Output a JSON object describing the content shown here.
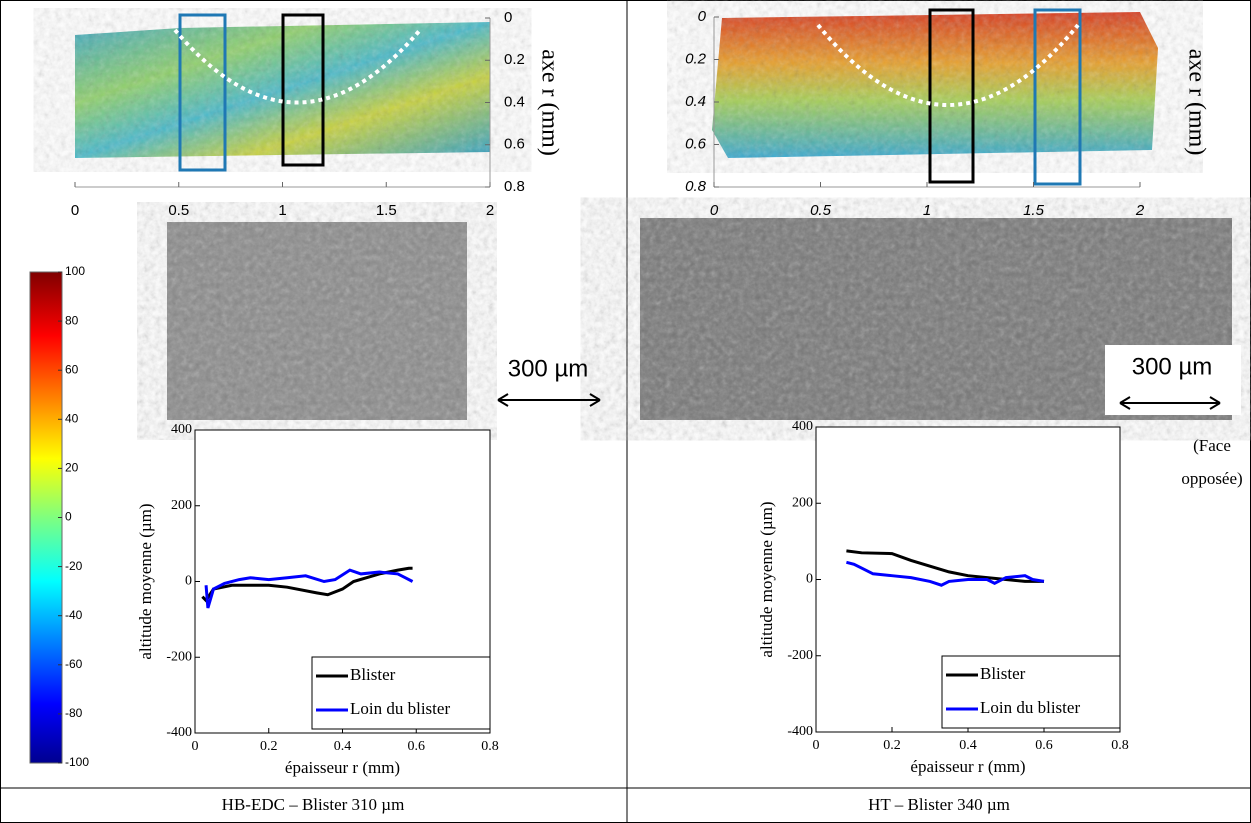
{
  "chart_data": [
    {
      "type": "line",
      "xlabel": "épaisseur r (mm)",
      "ylabel": "altitude moyenne (µm)",
      "xlim": [
        0,
        0.8
      ],
      "xticks": [
        0,
        0.2,
        0.4,
        0.6,
        0.8
      ],
      "ylim": [
        -400,
        400
      ],
      "yticks": [
        -400,
        -200,
        0,
        200,
        400
      ],
      "legend": "lower right",
      "series": [
        {
          "name": "Blister",
          "color": "#000000",
          "x": [
            0.02,
            0.03,
            0.05,
            0.1,
            0.2,
            0.25,
            0.33,
            0.36,
            0.4,
            0.43,
            0.5,
            0.55,
            0.58,
            0.59
          ],
          "values": [
            -40,
            -50,
            -20,
            -10,
            -10,
            -15,
            -30,
            -35,
            -20,
            0,
            20,
            30,
            35,
            35
          ]
        },
        {
          "name": "Loin du blister",
          "color": "#0000ff",
          "x": [
            0.03,
            0.035,
            0.05,
            0.08,
            0.12,
            0.15,
            0.2,
            0.25,
            0.3,
            0.35,
            0.38,
            0.42,
            0.45,
            0.5,
            0.55,
            0.57,
            0.59
          ],
          "values": [
            -10,
            -70,
            -20,
            -5,
            5,
            10,
            5,
            10,
            15,
            0,
            5,
            30,
            20,
            25,
            20,
            10,
            0
          ]
        }
      ]
    },
    {
      "type": "line",
      "xlabel": "épaisseur r (mm)",
      "ylabel": "altitude moyenne (µm)",
      "xlim": [
        0,
        0.8
      ],
      "xticks": [
        0,
        0.2,
        0.4,
        0.6,
        0.8
      ],
      "ylim": [
        -400,
        400
      ],
      "yticks": [
        -400,
        -200,
        0,
        200,
        400
      ],
      "legend": "lower right",
      "series": [
        {
          "name": "Blister",
          "color": "#000000",
          "x": [
            0.08,
            0.12,
            0.2,
            0.25,
            0.3,
            0.35,
            0.4,
            0.45,
            0.5,
            0.55,
            0.6
          ],
          "values": [
            75,
            70,
            68,
            50,
            35,
            20,
            10,
            5,
            0,
            -5,
            -5
          ]
        },
        {
          "name": "Loin du blister",
          "color": "#0000ff",
          "x": [
            0.08,
            0.1,
            0.12,
            0.15,
            0.2,
            0.25,
            0.3,
            0.33,
            0.35,
            0.4,
            0.45,
            0.47,
            0.5,
            0.55,
            0.57,
            0.6
          ],
          "values": [
            45,
            40,
            30,
            15,
            10,
            5,
            -5,
            -15,
            -5,
            0,
            0,
            -10,
            5,
            10,
            0,
            -5
          ]
        }
      ]
    },
    {
      "type": "colorbar",
      "ylim": [
        -100,
        100
      ],
      "yticks": [
        -100,
        -80,
        -60,
        -40,
        -20,
        0,
        20,
        40,
        60,
        80,
        100
      ]
    },
    {
      "type": "heatmap",
      "ylabel": "axe r (mm)",
      "xlim": [
        0,
        2
      ],
      "xticks": [
        0,
        0.5,
        1,
        1.5,
        2
      ],
      "ylim": [
        0,
        0.8
      ],
      "yticks": [
        0,
        0.2,
        0.4,
        0.6,
        0.8
      ]
    },
    {
      "type": "heatmap",
      "ylabel": "axe r (mm)",
      "xlim": [
        0,
        2
      ],
      "xticks": [
        0,
        0.5,
        1,
        1.5,
        2
      ],
      "ylim": [
        0,
        0.8
      ],
      "yticks": [
        0,
        0.2,
        0.4,
        0.6,
        0.8
      ]
    }
  ],
  "scale_bars": [
    "300 µm",
    "300 µm"
  ],
  "note_lines": [
    "(Face",
    "opposée)"
  ],
  "captions": [
    "HB-EDC – Blister 310 µm",
    "HT – Blister 340 µm"
  ]
}
